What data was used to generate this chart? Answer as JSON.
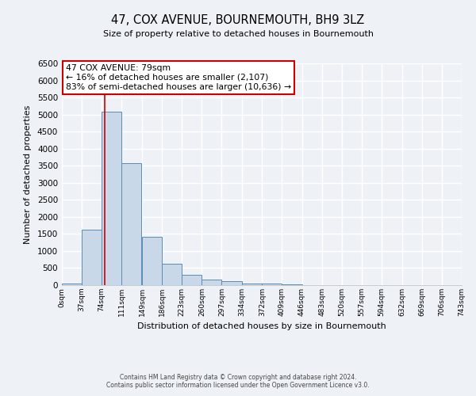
{
  "title": "47, COX AVENUE, BOURNEMOUTH, BH9 3LZ",
  "subtitle": "Size of property relative to detached houses in Bournemouth",
  "xlabel": "Distribution of detached houses by size in Bournemouth",
  "ylabel": "Number of detached properties",
  "bar_color": "#c8d8e8",
  "bar_edge_color": "#5a8db5",
  "background_color": "#eef2f7",
  "grid_color": "#ffffff",
  "bin_edges": [
    0,
    37,
    74,
    111,
    149,
    186,
    223,
    260,
    297,
    334,
    372,
    409,
    446,
    483,
    520,
    557,
    594,
    632,
    669,
    706,
    743
  ],
  "bin_labels": [
    "0sqm",
    "37sqm",
    "74sqm",
    "111sqm",
    "149sqm",
    "186sqm",
    "223sqm",
    "260sqm",
    "297sqm",
    "334sqm",
    "372sqm",
    "409sqm",
    "446sqm",
    "483sqm",
    "520sqm",
    "557sqm",
    "594sqm",
    "632sqm",
    "669sqm",
    "706sqm",
    "743sqm"
  ],
  "bar_heights": [
    50,
    1630,
    5080,
    3580,
    1420,
    620,
    310,
    160,
    110,
    50,
    50,
    30,
    0,
    0,
    0,
    0,
    0,
    0,
    0,
    0
  ],
  "ylim": [
    0,
    6500
  ],
  "yticks": [
    0,
    500,
    1000,
    1500,
    2000,
    2500,
    3000,
    3500,
    4000,
    4500,
    5000,
    5500,
    6000,
    6500
  ],
  "vline_x": 79,
  "annotation_title": "47 COX AVENUE: 79sqm",
  "annotation_line1": "← 16% of detached houses are smaller (2,107)",
  "annotation_line2": "83% of semi-detached houses are larger (10,636) →",
  "annotation_box_color": "#ffffff",
  "annotation_box_edge": "#cc0000",
  "vline_color": "#cc0000",
  "footer_line1": "Contains HM Land Registry data © Crown copyright and database right 2024.",
  "footer_line2": "Contains public sector information licensed under the Open Government Licence v3.0."
}
